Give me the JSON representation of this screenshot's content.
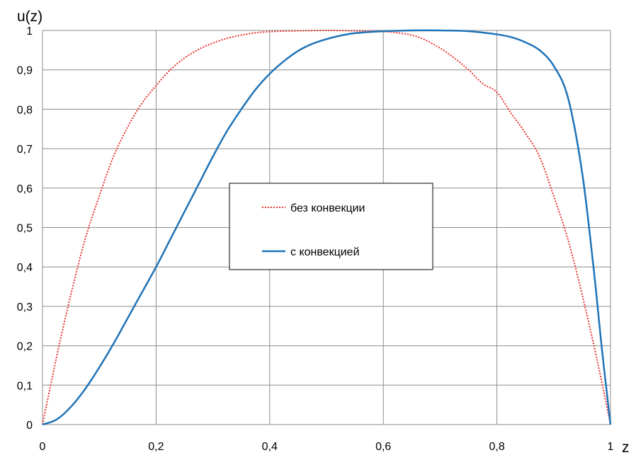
{
  "chart_data": {
    "type": "line",
    "title": "",
    "xlabel": "z",
    "ylabel": "u(z)",
    "xlim": [
      0,
      1
    ],
    "ylim": [
      0,
      1
    ],
    "x_ticks": [
      "0",
      "0,2",
      "0,4",
      "0,6",
      "0,8",
      "1"
    ],
    "x_tick_values": [
      0,
      0.2,
      0.4,
      0.6,
      0.8,
      1
    ],
    "y_ticks": [
      "0",
      "0,1",
      "0,2",
      "0,3",
      "0,4",
      "0,5",
      "0,6",
      "0,7",
      "0,8",
      "0,9",
      "1"
    ],
    "y_tick_values": [
      0,
      0.1,
      0.2,
      0.3,
      0.4,
      0.5,
      0.6,
      0.7,
      0.8,
      0.9,
      1
    ],
    "grid": true,
    "legend_position": "center",
    "series": [
      {
        "name": "без конвекции",
        "style": "dotted",
        "color": "#e8332f",
        "x": [
          0,
          0.025,
          0.05,
          0.075,
          0.1,
          0.125,
          0.15,
          0.175,
          0.2,
          0.225,
          0.25,
          0.275,
          0.3,
          0.325,
          0.35,
          0.375,
          0.4,
          0.45,
          0.5,
          0.55,
          0.6,
          0.625,
          0.65,
          0.675,
          0.7,
          0.725,
          0.75,
          0.775,
          0.8,
          0.825,
          0.85,
          0.875,
          0.9,
          0.925,
          0.95,
          0.975,
          1
        ],
        "y": [
          0,
          0.173,
          0.33,
          0.47,
          0.58,
          0.68,
          0.755,
          0.815,
          0.86,
          0.9,
          0.93,
          0.952,
          0.968,
          0.98,
          0.988,
          0.994,
          0.997,
          0.999,
          1,
          0.999,
          0.997,
          0.994,
          0.988,
          0.975,
          0.955,
          0.93,
          0.9,
          0.865,
          0.843,
          0.79,
          0.74,
          0.68,
          0.58,
          0.47,
          0.33,
          0.173,
          0
        ]
      },
      {
        "name": "с конвекцией",
        "style": "solid",
        "color": "#1f73b7",
        "x": [
          0,
          0.025,
          0.05,
          0.075,
          0.1,
          0.125,
          0.15,
          0.175,
          0.2,
          0.225,
          0.25,
          0.275,
          0.3,
          0.325,
          0.35,
          0.375,
          0.4,
          0.425,
          0.45,
          0.475,
          0.5,
          0.525,
          0.55,
          0.6,
          0.65,
          0.7,
          0.75,
          0.8,
          0.825,
          0.85,
          0.875,
          0.9,
          0.925,
          0.95,
          0.97,
          0.985,
          1
        ],
        "y": [
          0,
          0.013,
          0.045,
          0.09,
          0.145,
          0.205,
          0.27,
          0.335,
          0.4,
          0.47,
          0.54,
          0.61,
          0.68,
          0.745,
          0.8,
          0.85,
          0.89,
          0.922,
          0.948,
          0.966,
          0.978,
          0.987,
          0.993,
          0.998,
          1,
          1,
          0.998,
          0.99,
          0.983,
          0.97,
          0.95,
          0.91,
          0.83,
          0.64,
          0.4,
          0.19,
          0
        ]
      }
    ]
  }
}
